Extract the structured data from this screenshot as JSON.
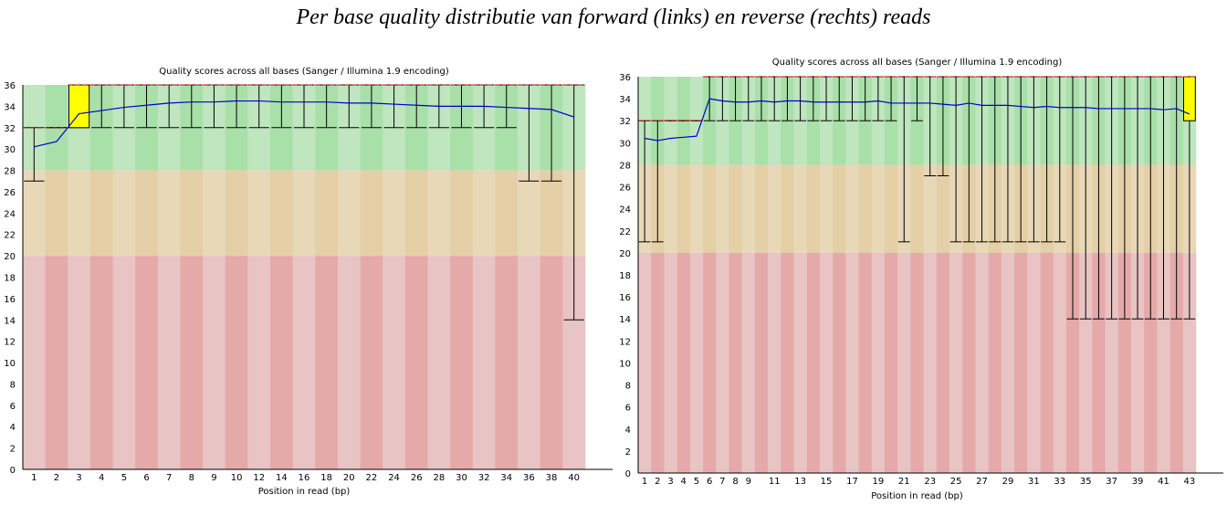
{
  "caption": "Per base quality distributie van forward (links) en reverse (rechts) reads",
  "colors": {
    "zone_good": "#bfe6bf",
    "zone_good_alt": "#a9dfa9",
    "zone_ok": "#e8d8b8",
    "zone_ok_alt": "#e4cfa6",
    "zone_poor": "#e8c4c4",
    "zone_poor_alt": "#e6a9a9",
    "box": "#ffff00",
    "mean_line": "#0000cc",
    "median": "#cc0000"
  },
  "chart_data": [
    {
      "type": "box",
      "title": "Quality scores across all bases (Sanger / Illumina 1.9 encoding)",
      "xlabel": "Position in read (bp)",
      "ylabel": "",
      "ylim": [
        0,
        36
      ],
      "yticks": [
        0,
        2,
        4,
        6,
        8,
        10,
        12,
        14,
        16,
        18,
        20,
        22,
        24,
        26,
        28,
        30,
        32,
        34,
        36
      ],
      "xticklabels": [
        "1",
        "2",
        "3",
        "4",
        "5",
        "6",
        "7",
        "8",
        "9",
        "10",
        "12",
        "14",
        "16",
        "18",
        "20",
        "22",
        "24",
        "26",
        "28",
        "30",
        "32",
        "34",
        "36",
        "38",
        "40"
      ],
      "zones": [
        {
          "from": 28,
          "to": 36,
          "quality": "good"
        },
        {
          "from": 20,
          "to": 28,
          "quality": "ok"
        },
        {
          "from": 0,
          "to": 20,
          "quality": "poor"
        }
      ],
      "grid": false,
      "positions": [
        "1",
        "2",
        "3",
        "4",
        "5",
        "6",
        "7",
        "8",
        "9",
        "10-11",
        "12-13",
        "14-15",
        "16-17",
        "18-19",
        "20-21",
        "22-23",
        "24-25",
        "26-27",
        "28-29",
        "30-31",
        "32-33",
        "34-35",
        "36-37",
        "38-39",
        "40"
      ],
      "mean": [
        30.2,
        30.7,
        33.3,
        33.6,
        33.9,
        34.1,
        34.3,
        34.4,
        34.4,
        34.5,
        34.5,
        34.4,
        34.4,
        34.4,
        34.3,
        34.3,
        34.2,
        34.1,
        34.0,
        34.0,
        34.0,
        33.9,
        33.8,
        33.7,
        33.0
      ],
      "median": [
        32,
        32,
        36,
        36,
        36,
        36,
        36,
        36,
        36,
        36,
        36,
        36,
        36,
        36,
        36,
        36,
        36,
        36,
        36,
        36,
        36,
        36,
        36,
        36,
        36
      ],
      "q1": [
        32,
        32,
        32,
        36,
        36,
        36,
        36,
        36,
        36,
        36,
        36,
        36,
        36,
        36,
        36,
        36,
        36,
        36,
        36,
        36,
        36,
        36,
        36,
        36,
        36
      ],
      "q3": [
        32,
        32,
        36,
        36,
        36,
        36,
        36,
        36,
        36,
        36,
        36,
        36,
        36,
        36,
        36,
        36,
        36,
        36,
        36,
        36,
        36,
        36,
        36,
        36,
        36
      ],
      "whisker_low": [
        27,
        32,
        32,
        32,
        32,
        32,
        32,
        32,
        32,
        32,
        32,
        32,
        32,
        32,
        32,
        32,
        32,
        32,
        32,
        32,
        32,
        32,
        27,
        27,
        14
      ],
      "whisker_high": [
        32,
        32,
        36,
        36,
        36,
        36,
        36,
        36,
        36,
        36,
        36,
        36,
        36,
        36,
        36,
        36,
        36,
        36,
        36,
        36,
        36,
        36,
        36,
        36,
        36
      ]
    },
    {
      "type": "box",
      "title": "Quality scores across all bases (Sanger / Illumina 1.9 encoding)",
      "xlabel": "Position in read (bp)",
      "ylabel": "",
      "ylim": [
        0,
        36
      ],
      "yticks": [
        0,
        2,
        4,
        6,
        8,
        10,
        12,
        14,
        16,
        18,
        20,
        22,
        24,
        26,
        28,
        30,
        32,
        34,
        36
      ],
      "xticklabels": [
        "1",
        "2",
        "3",
        "4",
        "5",
        "6",
        "7",
        "8",
        "9",
        "11",
        "13",
        "15",
        "17",
        "19",
        "21",
        "23",
        "25",
        "27",
        "29",
        "31",
        "33",
        "35",
        "37",
        "39",
        "41",
        "43"
      ],
      "zones": [
        {
          "from": 28,
          "to": 36,
          "quality": "good"
        },
        {
          "from": 20,
          "to": 28,
          "quality": "ok"
        },
        {
          "from": 0,
          "to": 20,
          "quality": "poor"
        }
      ],
      "grid": false,
      "positions": [
        "1",
        "2",
        "3",
        "4",
        "5",
        "6",
        "7",
        "8",
        "9",
        "10",
        "11",
        "12",
        "13",
        "14",
        "15",
        "16",
        "17",
        "18",
        "19",
        "20",
        "21",
        "22",
        "23",
        "24",
        "25",
        "26",
        "27",
        "28",
        "29",
        "30",
        "31",
        "32",
        "33",
        "34",
        "35",
        "36",
        "37",
        "38",
        "39",
        "40",
        "41",
        "42",
        "43"
      ],
      "mean": [
        30.4,
        30.2,
        30.4,
        30.5,
        30.6,
        34.0,
        33.8,
        33.7,
        33.7,
        33.8,
        33.7,
        33.8,
        33.8,
        33.7,
        33.7,
        33.7,
        33.7,
        33.7,
        33.8,
        33.6,
        33.6,
        33.6,
        33.6,
        33.5,
        33.4,
        33.6,
        33.4,
        33.4,
        33.4,
        33.3,
        33.2,
        33.3,
        33.2,
        33.2,
        33.2,
        33.1,
        33.1,
        33.1,
        33.1,
        33.1,
        33.0,
        33.1,
        32.6
      ],
      "median": [
        32,
        32,
        32,
        32,
        32,
        36,
        36,
        36,
        36,
        36,
        36,
        36,
        36,
        36,
        36,
        36,
        36,
        36,
        36,
        36,
        36,
        36,
        36,
        36,
        36,
        36,
        36,
        36,
        36,
        36,
        36,
        36,
        36,
        36,
        36,
        36,
        36,
        36,
        36,
        36,
        36,
        36,
        36
      ],
      "q1": [
        32,
        32,
        32,
        32,
        32,
        36,
        36,
        36,
        36,
        36,
        36,
        36,
        36,
        36,
        36,
        36,
        36,
        36,
        36,
        36,
        36,
        36,
        36,
        36,
        36,
        36,
        36,
        36,
        36,
        36,
        36,
        36,
        36,
        36,
        36,
        36,
        36,
        36,
        36,
        36,
        36,
        36,
        32
      ],
      "q3": [
        32,
        32,
        32,
        32,
        32,
        36,
        36,
        36,
        36,
        36,
        36,
        36,
        36,
        36,
        36,
        36,
        36,
        36,
        36,
        36,
        36,
        36,
        36,
        36,
        36,
        36,
        36,
        36,
        36,
        36,
        36,
        36,
        36,
        36,
        36,
        36,
        36,
        36,
        36,
        36,
        36,
        36,
        36
      ],
      "whisker_low": [
        21,
        21,
        32,
        32,
        32,
        32,
        32,
        32,
        32,
        32,
        32,
        32,
        32,
        32,
        32,
        32,
        32,
        32,
        32,
        32,
        21,
        32,
        27,
        27,
        21,
        21,
        21,
        21,
        21,
        21,
        21,
        21,
        21,
        14,
        14,
        14,
        14,
        14,
        14,
        14,
        14,
        14,
        14
      ],
      "whisker_high": [
        32,
        32,
        32,
        32,
        32,
        36,
        36,
        36,
        36,
        36,
        36,
        36,
        36,
        36,
        36,
        36,
        36,
        36,
        36,
        36,
        36,
        36,
        36,
        36,
        36,
        36,
        36,
        36,
        36,
        36,
        36,
        36,
        36,
        36,
        36,
        36,
        36,
        36,
        36,
        36,
        36,
        36,
        36
      ]
    }
  ]
}
